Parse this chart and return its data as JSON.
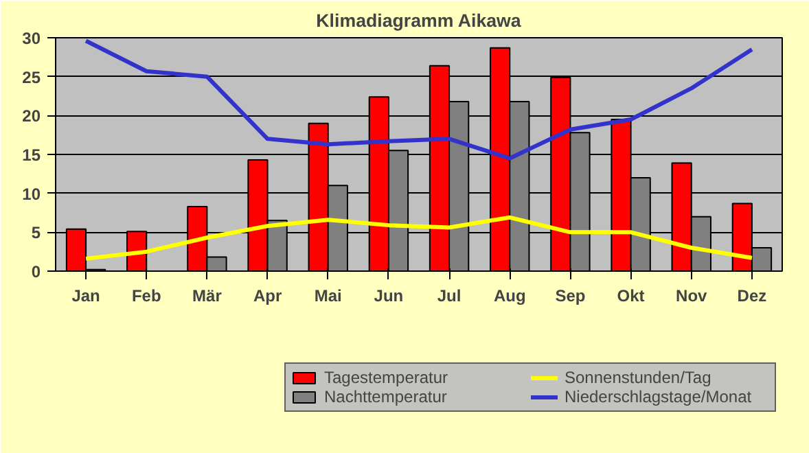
{
  "chart_data": {
    "type": "bar",
    "title": "Klimadiagramm Aikawa",
    "categories": [
      "Jan",
      "Feb",
      "Mär",
      "Apr",
      "Mai",
      "Jun",
      "Jul",
      "Aug",
      "Sep",
      "Okt",
      "Nov",
      "Dez"
    ],
    "series": [
      {
        "name": "Tagestemperatur",
        "color": "#ff0000",
        "values": [
          5.4,
          5.1,
          8.3,
          14.3,
          19.0,
          22.4,
          26.4,
          28.7,
          24.9,
          19.5,
          13.9,
          8.7
        ]
      },
      {
        "name": "Nachttemperatur",
        "color": "#808080",
        "values": [
          0.2,
          null,
          1.8,
          6.5,
          11.0,
          15.5,
          21.8,
          21.8,
          17.8,
          12.0,
          7.0,
          3.0
        ]
      },
      {
        "name": "Sonnenstunden/Tag",
        "type": "line",
        "color": "#ffff00",
        "values": [
          1.6,
          2.5,
          4.3,
          5.8,
          6.6,
          5.9,
          5.6,
          6.9,
          5.0,
          5.0,
          3.0,
          1.7
        ]
      },
      {
        "name": "Niederschlagstage/Monat",
        "type": "line",
        "color": "#3333cc",
        "values": [
          29.6,
          25.7,
          25.0,
          17.0,
          16.3,
          16.7,
          17.0,
          14.5,
          18.2,
          19.5,
          23.5,
          28.5
        ]
      }
    ],
    "ylim": [
      0,
      30
    ],
    "yticks": [
      0,
      5,
      10,
      15,
      20,
      25,
      30
    ],
    "grid": "y",
    "legend": "bottom",
    "marker": "none",
    "line_style": "solid"
  }
}
